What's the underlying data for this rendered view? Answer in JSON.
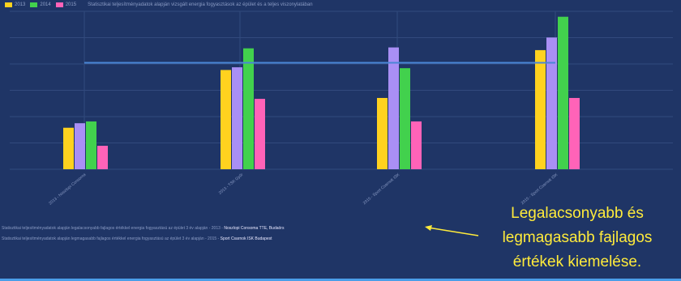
{
  "legend": {
    "items": [
      {
        "label": "2013",
        "color": "#ffd21f"
      },
      {
        "label": "2014",
        "color": "#42d14d"
      },
      {
        "label": "2015",
        "color": "#ff63b8"
      }
    ],
    "title": "Statisztikai teljesítményadatok alapján vizsgált energia fogyasztások az épület és a teljes viszonylatában"
  },
  "footnotes": [
    {
      "text": "Statisztikai teljesítményadatok alapján legalacsonyabb fajlagos értékkel energia fogyasztású az épület 3 év alapján - 2013 - ",
      "highlight": "Noszlopi Consoma TTE, Budaörs"
    },
    {
      "text": "Statisztikai teljesítményadatok alapján legmagasabb fajlagos értékkel energia fogyasztású az épület 3 év alapján - 2015 - ",
      "highlight": "Sport Csarnok ISK Budapest"
    }
  ],
  "callout": {
    "lines": [
      "Legalacsonyabb és",
      "legmagasabb fajlagos",
      "értékek kiemelése."
    ],
    "color": "#ffeb3b"
  },
  "chart_data": {
    "type": "bar",
    "categories": [
      "2013 - Noszlopi Consoma",
      "2013 - TSK Győr",
      "2015 - Sport Csarnok ISK",
      "2015 - Sport Csarnok ISK"
    ],
    "series": [
      {
        "color": "#ffd21f",
        "values": [
          4.6,
          11.0,
          7.9,
          13.2
        ]
      },
      {
        "color": "#a98ff5",
        "values": [
          5.1,
          11.3,
          13.5,
          14.6
        ]
      },
      {
        "color": "#42d14d",
        "values": [
          5.3,
          13.4,
          11.2,
          16.9
        ]
      },
      {
        "color": "#ff63b8",
        "values": [
          2.6,
          7.8,
          5.3,
          7.9
        ]
      }
    ],
    "reference_line": 11.8,
    "ylim": [
      0,
      17.5
    ],
    "grid": true
  },
  "colors": {
    "background": "#1f3566",
    "grid": "#324a7d",
    "reference_line": "#4a86d6"
  }
}
